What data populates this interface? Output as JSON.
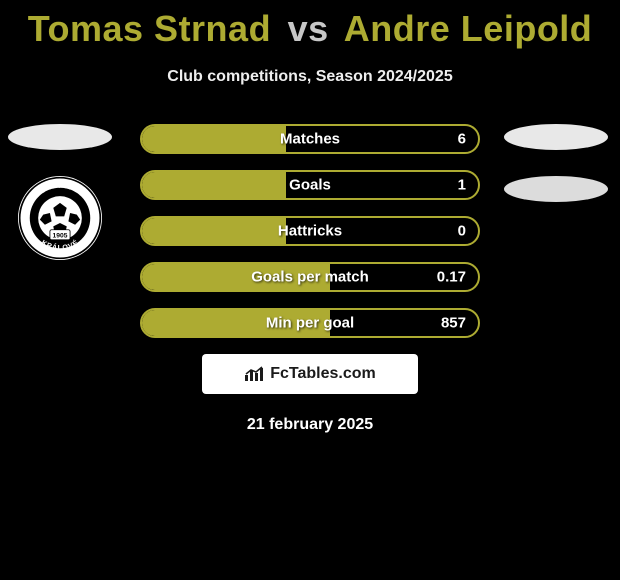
{
  "title": {
    "player1": "Tomas Strnad",
    "vs": "vs",
    "player2": "Andre Leipold",
    "player1_color": "#adab32",
    "player2_color": "#adab32",
    "vs_color": "#c7c7c7"
  },
  "subtitle": "Club competitions, Season 2024/2025",
  "club_badge": {
    "outer_text_top": "FC HRADEC",
    "outer_text_bottom": "KRÁLOVÉ",
    "year": "1905"
  },
  "bars": [
    {
      "label": "Matches",
      "value": "6",
      "fill_pct": 43
    },
    {
      "label": "Goals",
      "value": "1",
      "fill_pct": 43
    },
    {
      "label": "Hattricks",
      "value": "0",
      "fill_pct": 43
    },
    {
      "label": "Goals per match",
      "value": "0.17",
      "fill_pct": 56
    },
    {
      "label": "Min per goal",
      "value": "857",
      "fill_pct": 56
    }
  ],
  "bar_style": {
    "border_color": "#adab32",
    "fill_color": "#adab32",
    "text_color": "#ffffff"
  },
  "footer_brand": "FcTables.com",
  "date": "21 february 2025",
  "colors": {
    "background": "#000000",
    "oval": "#e8e8e8"
  }
}
